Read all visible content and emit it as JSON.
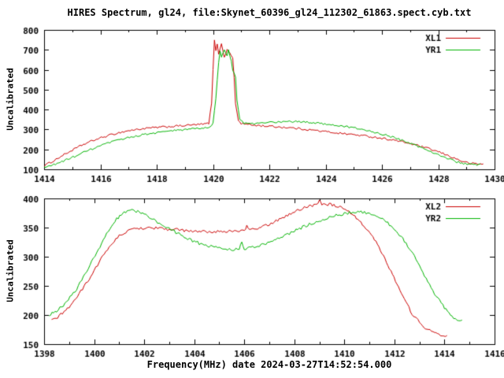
{
  "title": "HIRES Spectrum, gl24, file:Skynet_60396_gl24_112302_61863.spect.cyb.txt",
  "xlabel": "Frequency(MHz) date 2024-03-27T14:52:54.000",
  "colors": {
    "red": "#cc0000",
    "green": "#00b400",
    "axis": "#000000",
    "background": "#ffffff"
  },
  "chart_data": [
    {
      "type": "line",
      "ylabel": "Uncalibrated",
      "xlim": [
        1414,
        1430
      ],
      "ylim": [
        100,
        800
      ],
      "xticks": [
        1414,
        1416,
        1418,
        1420,
        1422,
        1424,
        1426,
        1428,
        1430
      ],
      "xminor": [
        1415,
        1417,
        1419,
        1421,
        1423,
        1425,
        1427,
        1429
      ],
      "yticks": [
        100,
        200,
        300,
        400,
        500,
        600,
        700,
        800
      ],
      "legend_position": "top-right",
      "grid": false,
      "series": [
        {
          "name": "XL1",
          "color": "#cc0000",
          "noise": 5,
          "points": [
            [
              1414,
              118
            ],
            [
              1414.3,
              140
            ],
            [
              1414.6,
              165
            ],
            [
              1415,
              196
            ],
            [
              1415.4,
              225
            ],
            [
              1415.8,
              248
            ],
            [
              1416.2,
              266
            ],
            [
              1416.6,
              282
            ],
            [
              1417,
              294
            ],
            [
              1417.4,
              302
            ],
            [
              1417.8,
              308
            ],
            [
              1418.2,
              312
            ],
            [
              1418.6,
              316
            ],
            [
              1419,
              320
            ],
            [
              1419.4,
              324
            ],
            [
              1419.7,
              327
            ],
            [
              1419.85,
              332
            ],
            [
              1419.95,
              430
            ],
            [
              1420,
              600
            ],
            [
              1420.05,
              745
            ],
            [
              1420.1,
              700
            ],
            [
              1420.15,
              725
            ],
            [
              1420.2,
              680
            ],
            [
              1420.3,
              735
            ],
            [
              1420.4,
              660
            ],
            [
              1420.5,
              700
            ],
            [
              1420.6,
              688
            ],
            [
              1420.7,
              655
            ],
            [
              1420.75,
              560
            ],
            [
              1420.8,
              430
            ],
            [
              1420.9,
              345
            ],
            [
              1421,
              330
            ],
            [
              1421.3,
              324
            ],
            [
              1421.6,
              320
            ],
            [
              1422,
              316
            ],
            [
              1422.4,
              312
            ],
            [
              1422.8,
              308
            ],
            [
              1423.2,
              302
            ],
            [
              1423.6,
              296
            ],
            [
              1424,
              289
            ],
            [
              1424.4,
              283
            ],
            [
              1424.8,
              277
            ],
            [
              1425.2,
              271
            ],
            [
              1425.6,
              264
            ],
            [
              1426,
              256
            ],
            [
              1426.4,
              247
            ],
            [
              1426.8,
              236
            ],
            [
              1427.2,
              222
            ],
            [
              1427.6,
              206
            ],
            [
              1428,
              188
            ],
            [
              1428.4,
              166
            ],
            [
              1428.8,
              143
            ],
            [
              1429.1,
              130
            ],
            [
              1429.4,
              127
            ],
            [
              1429.6,
              126
            ]
          ]
        },
        {
          "name": "YR1",
          "color": "#00b400",
          "noise": 5,
          "points": [
            [
              1414,
              108
            ],
            [
              1414.4,
              126
            ],
            [
              1414.8,
              148
            ],
            [
              1415.2,
              172
            ],
            [
              1415.6,
              196
            ],
            [
              1416,
              218
            ],
            [
              1416.4,
              237
            ],
            [
              1416.8,
              253
            ],
            [
              1417.2,
              266
            ],
            [
              1417.6,
              276
            ],
            [
              1418,
              284
            ],
            [
              1418.4,
              291
            ],
            [
              1418.8,
              297
            ],
            [
              1419.2,
              302
            ],
            [
              1419.6,
              307
            ],
            [
              1419.9,
              312
            ],
            [
              1420,
              330
            ],
            [
              1420.1,
              450
            ],
            [
              1420.2,
              640
            ],
            [
              1420.25,
              690
            ],
            [
              1420.3,
              660
            ],
            [
              1420.4,
              700
            ],
            [
              1420.5,
              670
            ],
            [
              1420.55,
              705
            ],
            [
              1420.65,
              640
            ],
            [
              1420.7,
              600
            ],
            [
              1420.8,
              560
            ],
            [
              1420.85,
              450
            ],
            [
              1420.95,
              355
            ],
            [
              1421.1,
              330
            ],
            [
              1421.4,
              328
            ],
            [
              1421.8,
              332
            ],
            [
              1422.2,
              337
            ],
            [
              1422.6,
              340
            ],
            [
              1423,
              339
            ],
            [
              1423.4,
              336
            ],
            [
              1423.8,
              331
            ],
            [
              1424.2,
              325
            ],
            [
              1424.6,
              317
            ],
            [
              1425,
              308
            ],
            [
              1425.4,
              297
            ],
            [
              1425.8,
              284
            ],
            [
              1426.2,
              269
            ],
            [
              1426.6,
              251
            ],
            [
              1427,
              231
            ],
            [
              1427.4,
              209
            ],
            [
              1427.8,
              186
            ],
            [
              1428.2,
              162
            ],
            [
              1428.6,
              140
            ],
            [
              1428.9,
              128
            ],
            [
              1429.2,
              123
            ],
            [
              1429.5,
              122
            ]
          ]
        }
      ]
    },
    {
      "type": "line",
      "ylabel": "Uncalibrated",
      "xlim": [
        1398,
        1416
      ],
      "ylim": [
        150,
        400
      ],
      "xticks": [
        1398,
        1400,
        1402,
        1404,
        1406,
        1408,
        1410,
        1412,
        1414,
        1416
      ],
      "xminor": [
        1399,
        1401,
        1403,
        1405,
        1407,
        1409,
        1411,
        1413,
        1415
      ],
      "yticks": [
        150,
        200,
        250,
        300,
        350,
        400
      ],
      "legend_position": "top-right",
      "grid": false,
      "series": [
        {
          "name": "XL2",
          "color": "#cc0000",
          "noise": 2.5,
          "points": [
            [
              1398.3,
              190
            ],
            [
              1398.6,
              198
            ],
            [
              1399,
              214
            ],
            [
              1399.4,
              236
            ],
            [
              1399.8,
              262
            ],
            [
              1400.2,
              291
            ],
            [
              1400.6,
              317
            ],
            [
              1401,
              336
            ],
            [
              1401.4,
              345
            ],
            [
              1401.8,
              349
            ],
            [
              1402.2,
              350
            ],
            [
              1402.6,
              349
            ],
            [
              1403,
              347
            ],
            [
              1403.4,
              346
            ],
            [
              1403.8,
              344
            ],
            [
              1404.2,
              343
            ],
            [
              1404.6,
              343
            ],
            [
              1405,
              343
            ],
            [
              1405.4,
              344
            ],
            [
              1405.8,
              344
            ],
            [
              1406,
              345
            ],
            [
              1406.1,
              352
            ],
            [
              1406.2,
              346
            ],
            [
              1406.6,
              349
            ],
            [
              1407,
              356
            ],
            [
              1407.4,
              364
            ],
            [
              1407.8,
              373
            ],
            [
              1408.2,
              381
            ],
            [
              1408.6,
              387
            ],
            [
              1408.9,
              390
            ],
            [
              1409,
              397
            ],
            [
              1409.1,
              391
            ],
            [
              1409.4,
              390
            ],
            [
              1409.7,
              387
            ],
            [
              1410,
              381
            ],
            [
              1410.3,
              373
            ],
            [
              1410.6,
              362
            ],
            [
              1410.9,
              348
            ],
            [
              1411.2,
              330
            ],
            [
              1411.5,
              307
            ],
            [
              1411.8,
              281
            ],
            [
              1412.1,
              253
            ],
            [
              1412.4,
              226
            ],
            [
              1412.7,
              203
            ],
            [
              1413,
              187
            ],
            [
              1413.3,
              176
            ],
            [
              1413.6,
              169
            ],
            [
              1413.9,
              165
            ],
            [
              1414.1,
              163
            ]
          ]
        },
        {
          "name": "YR2",
          "color": "#00b400",
          "noise": 2.5,
          "points": [
            [
              1398.2,
              200
            ],
            [
              1398.5,
              207
            ],
            [
              1398.9,
              222
            ],
            [
              1399.3,
              245
            ],
            [
              1399.7,
              274
            ],
            [
              1400.1,
              307
            ],
            [
              1400.5,
              340
            ],
            [
              1400.9,
              365
            ],
            [
              1401.2,
              377
            ],
            [
              1401.5,
              380
            ],
            [
              1401.8,
              376
            ],
            [
              1402.2,
              368
            ],
            [
              1402.6,
              358
            ],
            [
              1403,
              348
            ],
            [
              1403.4,
              339
            ],
            [
              1403.8,
              330
            ],
            [
              1404.2,
              323
            ],
            [
              1404.6,
              318
            ],
            [
              1405,
              315
            ],
            [
              1405.4,
              313
            ],
            [
              1405.8,
              312
            ],
            [
              1405.9,
              326
            ],
            [
              1406,
              314
            ],
            [
              1406.4,
              316
            ],
            [
              1406.8,
              321
            ],
            [
              1407.2,
              328
            ],
            [
              1407.6,
              336
            ],
            [
              1408,
              344
            ],
            [
              1408.4,
              352
            ],
            [
              1408.8,
              359
            ],
            [
              1409.2,
              365
            ],
            [
              1409.6,
              370
            ],
            [
              1410,
              374
            ],
            [
              1410.4,
              377
            ],
            [
              1410.8,
              376
            ],
            [
              1411.2,
              371
            ],
            [
              1411.6,
              362
            ],
            [
              1412,
              348
            ],
            [
              1412.4,
              327
            ],
            [
              1412.8,
              300
            ],
            [
              1413.2,
              268
            ],
            [
              1413.6,
              237
            ],
            [
              1414,
              212
            ],
            [
              1414.3,
              196
            ],
            [
              1414.5,
              190
            ],
            [
              1414.7,
              192
            ]
          ]
        }
      ]
    }
  ]
}
